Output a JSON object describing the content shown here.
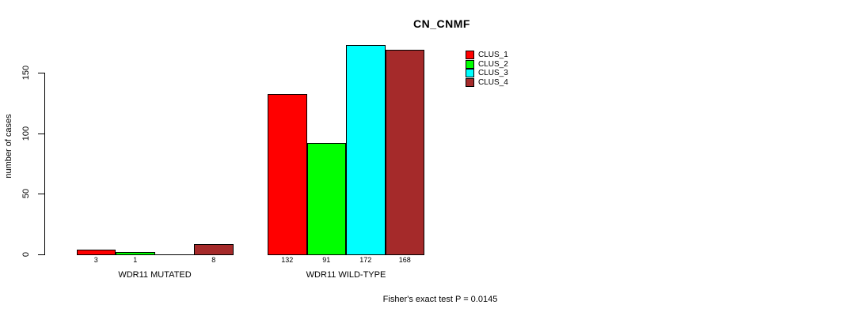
{
  "chart_data": {
    "type": "bar",
    "title": "CN_CNMF",
    "ylabel": "number of cases",
    "yticks": [
      0,
      50,
      100,
      150
    ],
    "ylim": [
      0,
      172
    ],
    "grid": false,
    "legend_position": "top-right-inside",
    "categories": [
      "WDR11 MUTATED",
      "WDR11 WILD-TYPE"
    ],
    "series": [
      {
        "name": "CLUS_1",
        "color": "#ff0000",
        "values": [
          3,
          132
        ]
      },
      {
        "name": "CLUS_2",
        "color": "#00ff00",
        "values": [
          1,
          91
        ]
      },
      {
        "name": "CLUS_3",
        "color": "#00ffff",
        "values": [
          0,
          172
        ]
      },
      {
        "name": "CLUS_4",
        "color": "#a52a2a",
        "values": [
          8,
          168
        ]
      }
    ],
    "bar_value_labels": [
      [
        "3",
        "1",
        "",
        "8"
      ],
      [
        "132",
        "91",
        "172",
        "168"
      ]
    ],
    "footnote": "Fisher's exact test P = 0.0145"
  }
}
